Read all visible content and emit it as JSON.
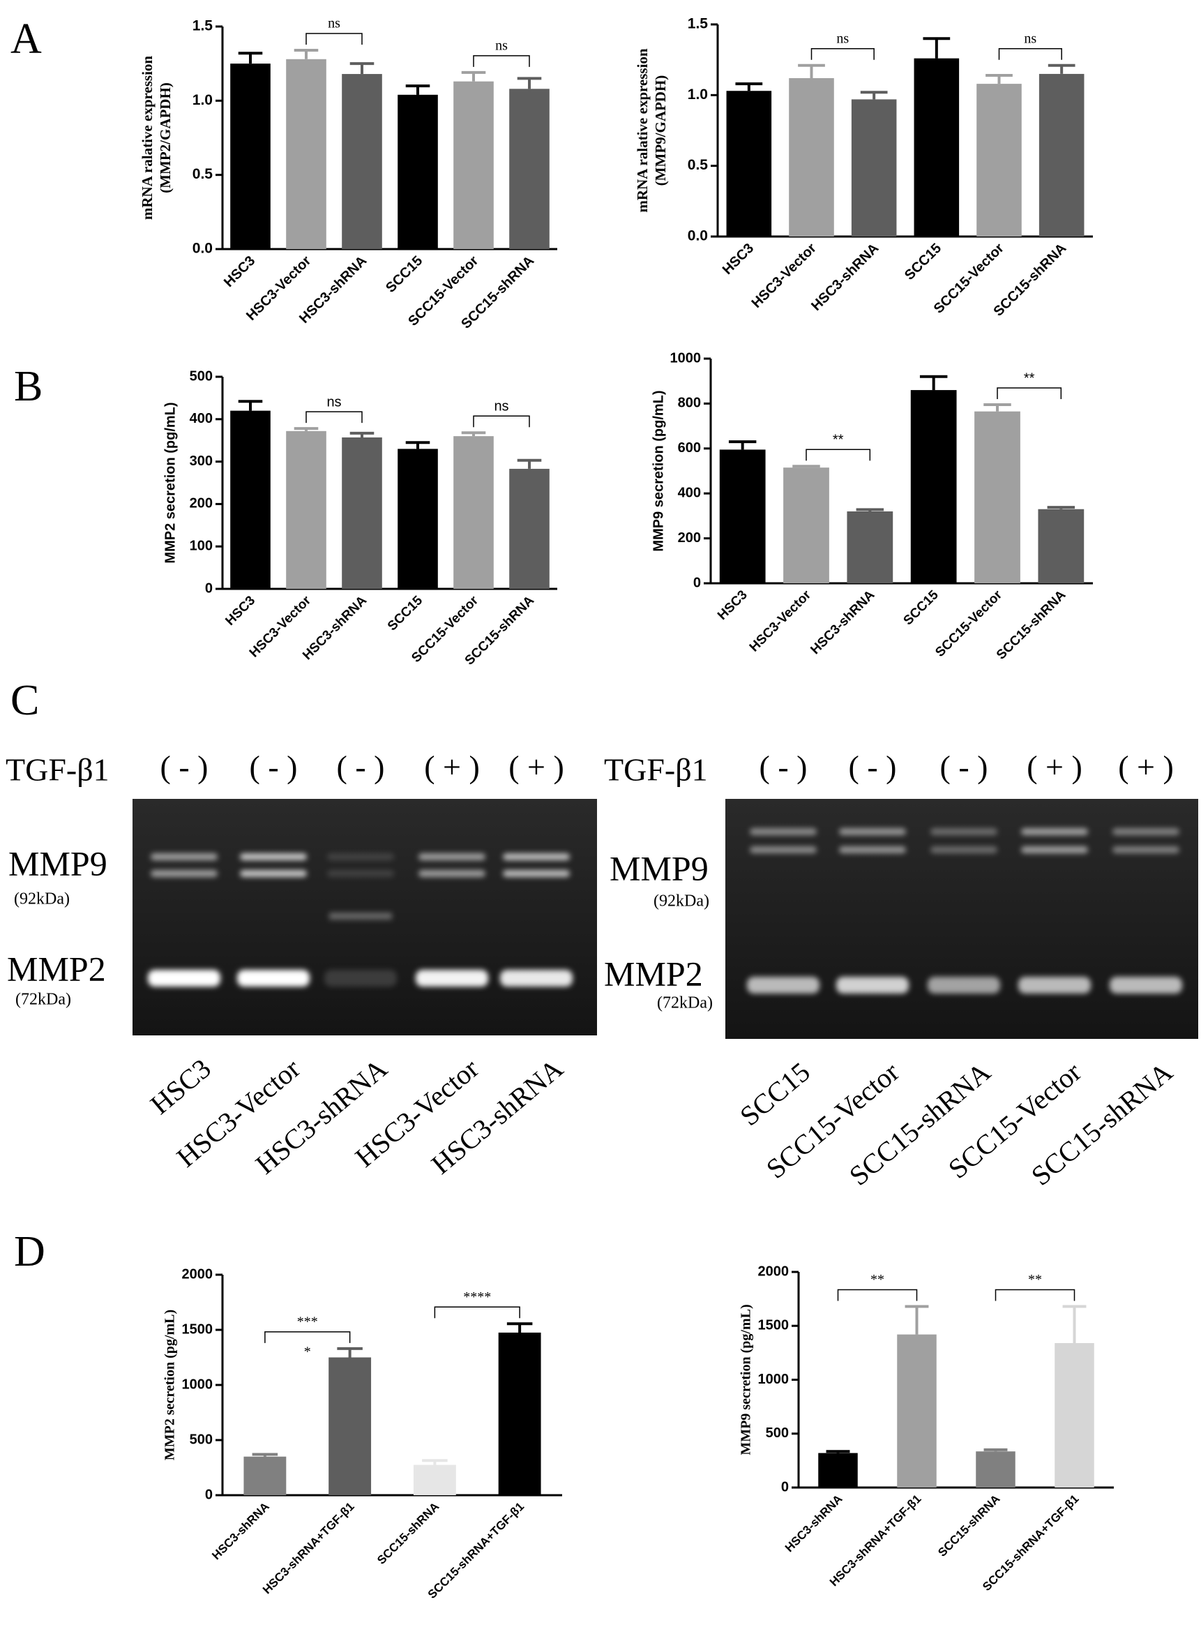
{
  "panels": [
    "A",
    "B",
    "C",
    "D"
  ],
  "chart_data": [
    {
      "type": "bar",
      "ylabel": [
        "mRNA ralative expression",
        "(MMP2/GAPDH)"
      ],
      "categories": [
        "HSC3",
        "HSC3-Vector",
        "HSC3-shRNA",
        "SCC15",
        "SCC15-Vector",
        "SCC15-shRNA"
      ],
      "values": [
        1.25,
        1.28,
        1.18,
        1.04,
        1.13,
        1.08
      ],
      "errors": [
        0.07,
        0.06,
        0.07,
        0.06,
        0.06,
        0.07
      ],
      "colors": [
        "#000000",
        "#a0a0a0",
        "#5e5e5e",
        "#000000",
        "#a0a0a0",
        "#5e5e5e"
      ],
      "ylim": [
        0,
        1.5
      ],
      "yticks": [
        {
          "value": 0,
          "label": "0.0"
        },
        {
          "value": 0.5,
          "label": "0.5"
        },
        {
          "value": 1,
          "label": "1.0"
        },
        {
          "value": 1.5,
          "label": "1.5"
        }
      ],
      "brackets": [
        {
          "label": "ns",
          "from": "HSC3-Vector",
          "to": "HSC3-shRNA"
        },
        {
          "label": "ns",
          "from": "SCC15-Vector",
          "to": "SCC15-shRNA"
        }
      ]
    },
    {
      "type": "bar",
      "ylabel": [
        "mRNA ralative expression",
        "(MMP9/GAPDH)"
      ],
      "categories": [
        "HSC3",
        "HSC3-Vector",
        "HSC3-shRNA",
        "SCC15",
        "SCC15-Vector",
        "SCC15-shRNA"
      ],
      "values": [
        1.03,
        1.12,
        0.97,
        1.26,
        1.08,
        1.15
      ],
      "errors": [
        0.05,
        0.09,
        0.05,
        0.14,
        0.06,
        0.06
      ],
      "colors": [
        "#000000",
        "#a0a0a0",
        "#5e5e5e",
        "#000000",
        "#a0a0a0",
        "#5e5e5e"
      ],
      "ylim": [
        0,
        1.5
      ],
      "yticks": [
        {
          "value": 0,
          "label": "0.0"
        },
        {
          "value": 0.5,
          "label": "0.5"
        },
        {
          "value": 1,
          "label": "1.0"
        },
        {
          "value": 1.5,
          "label": "1.5"
        }
      ],
      "brackets": [
        {
          "label": "ns",
          "from": "HSC3-Vector",
          "to": "HSC3-shRNA"
        },
        {
          "label": "ns",
          "from": "SCC15-Vector",
          "to": "SCC15-shRNA"
        }
      ]
    },
    {
      "type": "bar",
      "ylabel": [
        "MMP2 secretion (pg/mL)"
      ],
      "categories": [
        "HSC3",
        "HSC3-Vector",
        "HSC3-shRNA",
        "SCC15",
        "SCC15-Vector",
        "SCC15-shRNA"
      ],
      "values": [
        420,
        372,
        357,
        330,
        360,
        283
      ],
      "errors": [
        22,
        6,
        10,
        15,
        8,
        20
      ],
      "colors": [
        "#000000",
        "#a0a0a0",
        "#5e5e5e",
        "#000000",
        "#a0a0a0",
        "#5e5e5e"
      ],
      "ylim": [
        0,
        500
      ],
      "yticks": [
        0,
        100,
        200,
        300,
        400,
        500
      ],
      "brackets": [
        {
          "label": "ns",
          "from": "HSC3-Vector",
          "to": "HSC3-shRNA"
        },
        {
          "label": "ns",
          "from": "SCC15-Vector",
          "to": "SCC15-shRNA"
        }
      ]
    },
    {
      "type": "bar",
      "ylabel": [
        "MMP9 secretion (pg/mL)"
      ],
      "categories": [
        "HSC3",
        "HSC3-Vector",
        "HSC3-shRNA",
        "SCC15",
        "SCC15-Vector",
        "SCC15-shRNA"
      ],
      "values": [
        595,
        515,
        320,
        860,
        765,
        330
      ],
      "errors": [
        35,
        6,
        8,
        60,
        30,
        8
      ],
      "colors": [
        "#000000",
        "#a0a0a0",
        "#5e5e5e",
        "#000000",
        "#a0a0a0",
        "#5e5e5e"
      ],
      "ylim": [
        0,
        1000
      ],
      "yticks": [
        0,
        200,
        400,
        600,
        800,
        1000
      ],
      "brackets": [
        {
          "label": "**",
          "from": "HSC3-Vector",
          "to": "HSC3-shRNA"
        },
        {
          "label": "**",
          "from": "SCC15-Vector",
          "to": "SCC15-shRNA"
        }
      ]
    },
    {
      "type": "bar",
      "ylabel": [
        "MMP2 secretion (pg/mL)"
      ],
      "categories": [
        "HSC3-shRNA",
        "HSC3-shRNA+TGF-β1",
        "SCC15-shRNA",
        "SCC15-shRNA+TGF-β1"
      ],
      "values": [
        350,
        1250,
        275,
        1475
      ],
      "errors": [
        20,
        80,
        40,
        80
      ],
      "colors": [
        "#808080",
        "#5e5e5e",
        "#e6e6e6",
        "#000000"
      ],
      "ylim": [
        0,
        2000
      ],
      "yticks": [
        0,
        500,
        1000,
        1500,
        2000
      ],
      "brackets": [
        {
          "label": "***",
          "sublabel": "*",
          "from": "HSC3-shRNA",
          "to": "HSC3-shRNA+TGF-β1"
        },
        {
          "label": "****",
          "from": "SCC15-shRNA",
          "to": "SCC15-shRNA+TGF-β1"
        }
      ]
    },
    {
      "type": "bar",
      "ylabel": [
        "MMP9 secretion (pg/mL)"
      ],
      "categories": [
        "HSC3-shRNA",
        "HSC3-shRNA+TGF-β1",
        "SCC15-shRNA",
        "SCC15-shRNA+TGF-β1"
      ],
      "values": [
        320,
        1420,
        335,
        1340
      ],
      "errors": [
        15,
        260,
        15,
        340
      ],
      "colors": [
        "#000000",
        "#a0a0a0",
        "#808080",
        "#d6d6d6"
      ],
      "ylim": [
        0,
        2000
      ],
      "yticks": [
        0,
        500,
        1000,
        1500,
        2000
      ],
      "brackets": [
        {
          "label": "**",
          "from": "HSC3-shRNA",
          "to": "HSC3-shRNA+TGF-β1"
        },
        {
          "label": "**",
          "from": "SCC15-shRNA",
          "to": "SCC15-shRNA+TGF-β1"
        }
      ]
    }
  ],
  "gels": [
    {
      "treatment_label": "TGF-β1",
      "treatments": [
        "( - )",
        "( - )",
        "( - )",
        "( + )",
        "( + )"
      ],
      "markers": [
        {
          "name": "MMP9",
          "size": "(92kDa)"
        },
        {
          "name": "MMP2",
          "size": "(72kDa)"
        }
      ],
      "lanes": [
        "HSC3",
        "HSC3-Vector",
        "HSC3-shRNA",
        "HSC3-Vector",
        "HSC3-shRNA"
      ]
    },
    {
      "treatment_label": "TGF-β1",
      "treatments": [
        "( - )",
        "( - )",
        "( - )",
        "( + )",
        "( + )"
      ],
      "markers": [
        {
          "name": "MMP9",
          "size": "(92kDa)"
        },
        {
          "name": "MMP2",
          "size": "(72kDa)"
        }
      ],
      "lanes": [
        "SCC15",
        "SCC15-Vector",
        "SCC15-shRNA",
        "SCC15-Vector",
        "SCC15-shRNA"
      ]
    }
  ]
}
